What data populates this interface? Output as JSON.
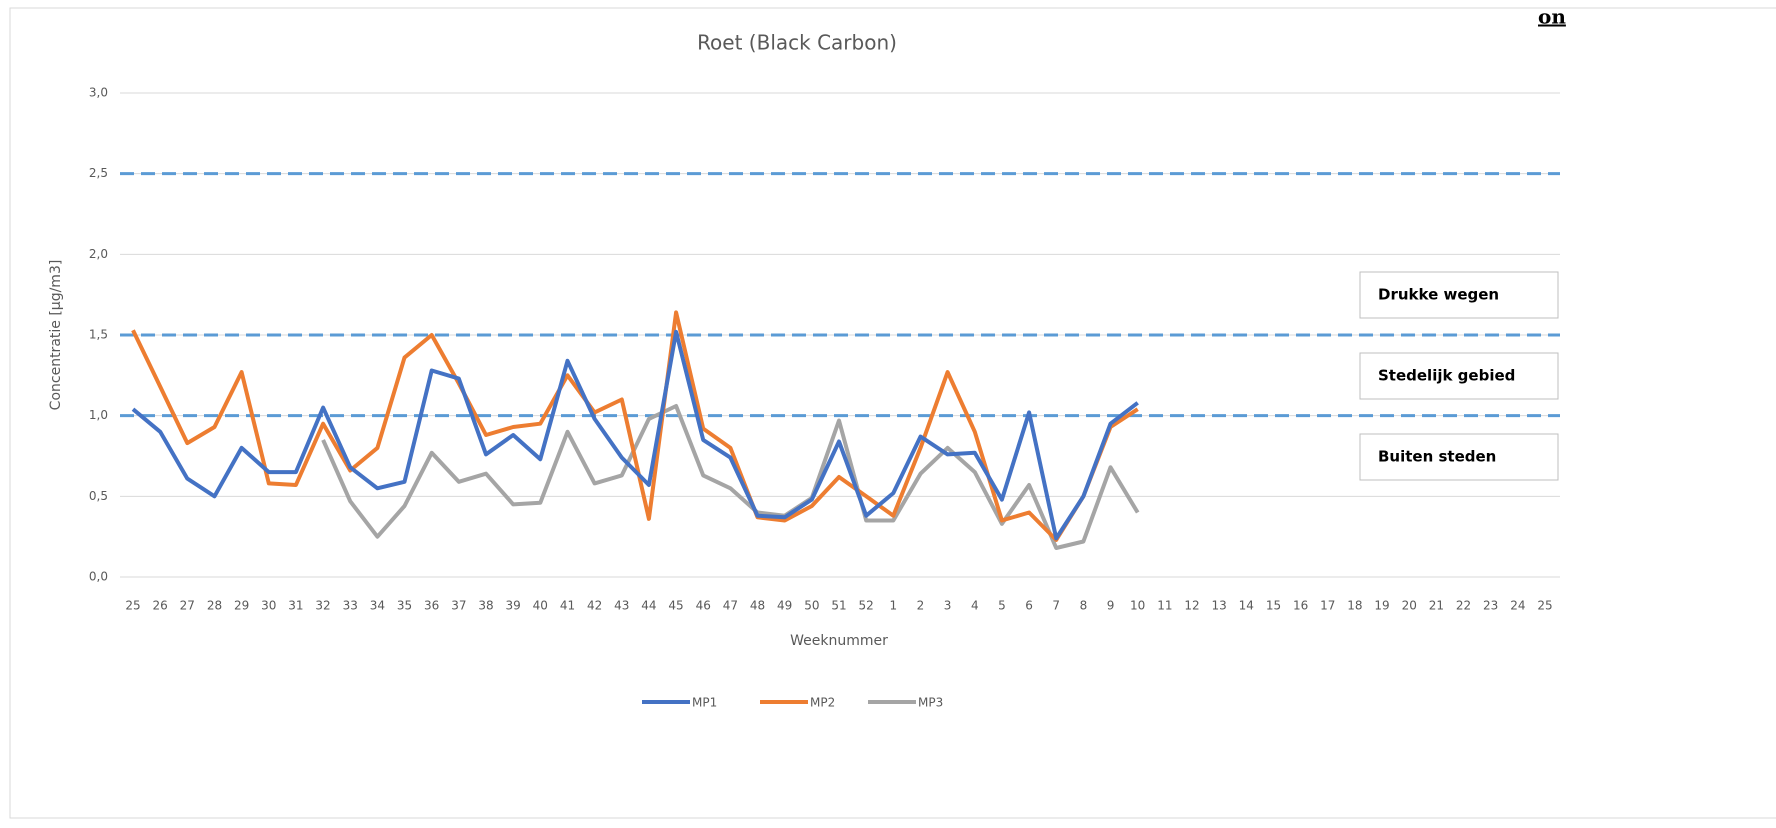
{
  "chart_data": {
    "type": "line",
    "title": "Roet (Black Carbon)",
    "y_label": "Concentratie [µg/m3]",
    "x_label": "Weeknummer",
    "corner_text": "on",
    "categories": [
      "25",
      "26",
      "27",
      "28",
      "29",
      "30",
      "31",
      "32",
      "33",
      "34",
      "35",
      "36",
      "37",
      "38",
      "39",
      "40",
      "41",
      "42",
      "43",
      "44",
      "45",
      "46",
      "47",
      "48",
      "49",
      "50",
      "51",
      "52",
      "1",
      "2",
      "3",
      "4",
      "5",
      "6",
      "7",
      "8",
      "9",
      "10",
      "11",
      "12",
      "13",
      "14",
      "15",
      "16",
      "17",
      "18",
      "19",
      "20",
      "21",
      "22",
      "23",
      "24",
      "25"
    ],
    "series": [
      {
        "name": "MP1",
        "color": "#4472c4",
        "values": [
          1.04,
          0.9,
          0.61,
          0.5,
          0.8,
          0.65,
          0.65,
          1.05,
          0.68,
          0.55,
          0.59,
          1.28,
          1.23,
          0.76,
          0.88,
          0.73,
          1.34,
          0.98,
          0.74,
          0.57,
          1.52,
          0.85,
          0.74,
          0.38,
          0.37,
          0.48,
          0.84,
          0.38,
          0.52,
          0.87,
          0.76,
          0.77,
          0.48,
          1.02,
          0.24,
          0.5,
          0.95,
          1.08,
          null,
          null,
          null,
          null,
          null,
          null,
          null,
          null,
          null,
          null,
          null,
          null,
          null,
          null,
          null
        ]
      },
      {
        "name": "MP2",
        "color": "#ed7d31",
        "values": [
          1.53,
          1.18,
          0.83,
          0.93,
          1.27,
          0.58,
          0.57,
          0.95,
          0.66,
          0.8,
          1.36,
          1.5,
          1.2,
          0.88,
          0.93,
          0.95,
          1.25,
          1.02,
          1.1,
          0.36,
          1.64,
          0.92,
          0.8,
          0.37,
          0.35,
          0.44,
          0.62,
          0.5,
          0.38,
          0.8,
          1.27,
          0.9,
          0.35,
          0.4,
          0.23,
          0.5,
          0.93,
          1.04,
          null,
          null,
          null,
          null,
          null,
          null,
          null,
          null,
          null,
          null,
          null,
          null,
          null,
          null,
          null
        ]
      },
      {
        "name": "MP3",
        "color": "#a5a5a5",
        "values": [
          null,
          null,
          null,
          null,
          null,
          null,
          null,
          0.85,
          0.47,
          0.25,
          0.44,
          0.77,
          0.59,
          0.64,
          0.45,
          0.46,
          0.9,
          0.58,
          0.63,
          0.98,
          1.06,
          0.63,
          0.55,
          0.4,
          0.38,
          0.49,
          0.97,
          0.35,
          0.35,
          0.64,
          0.8,
          0.65,
          0.33,
          0.57,
          0.18,
          0.22,
          0.68,
          0.4,
          null,
          null,
          null,
          null,
          null,
          null,
          null,
          null,
          null,
          null,
          null,
          null,
          null,
          null,
          null
        ]
      }
    ],
    "ylim": [
      0,
      3
    ],
    "yticks": [
      {
        "value": 0,
        "label": "0,0"
      },
      {
        "value": 0.5,
        "label": "0,5"
      },
      {
        "value": 1,
        "label": "1,0"
      },
      {
        "value": 1.5,
        "label": "1,5"
      },
      {
        "value": 2,
        "label": "2,0"
      },
      {
        "value": 2.5,
        "label": "2,5"
      },
      {
        "value": 3,
        "label": "3,0"
      }
    ],
    "grid": true,
    "reference_lines": [
      {
        "value": 2.5,
        "color": "#5b9bd5"
      },
      {
        "value": 1.5,
        "color": "#5b9bd5"
      },
      {
        "value": 1,
        "color": "#5b9bd5"
      }
    ],
    "annotations": [
      "Drukke wegen",
      "Stedelijk gebied",
      "Buiten steden"
    ],
    "legend": "bottom"
  }
}
